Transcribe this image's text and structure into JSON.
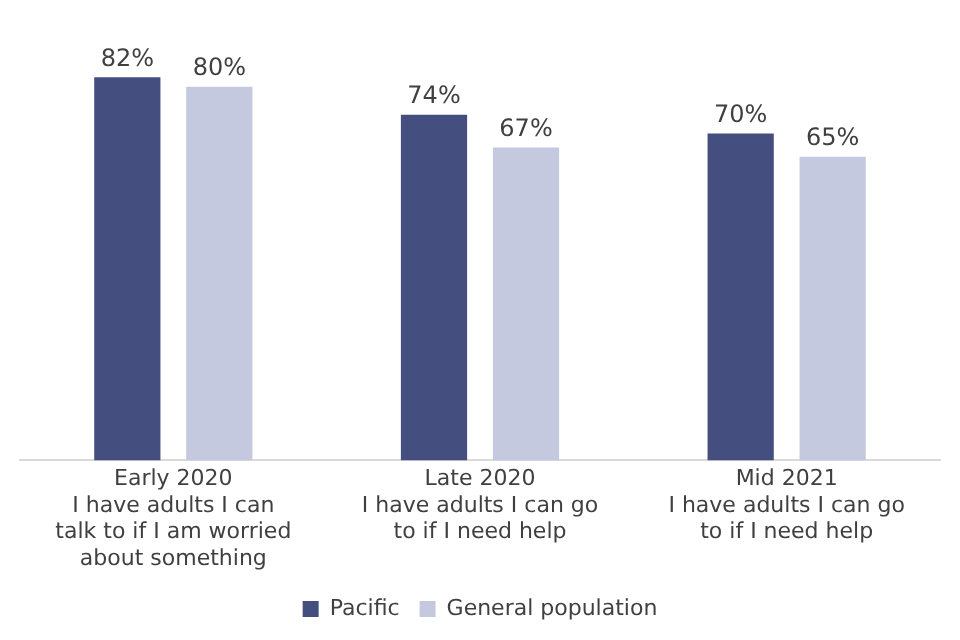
{
  "chart_data": {
    "type": "bar",
    "categories": [
      "Early 2020\nI have adults I can\ntalk to if I am worried\nabout something",
      "Late 2020\nI have adults I can go\nto if I need help",
      "Mid 2021\nI have adults I can go\nto if I need help"
    ],
    "series": [
      {
        "name": "Pacific",
        "color": "#444f80",
        "values": [
          82,
          74,
          70
        ],
        "value_labels": [
          "82%",
          "74%",
          "70%"
        ]
      },
      {
        "name": "General population",
        "color": "#c5c9e0",
        "values": [
          80,
          67,
          65
        ],
        "value_labels": [
          "80%",
          "67%",
          "65%"
        ]
      }
    ],
    "legend": "bottom",
    "grid": false
  }
}
